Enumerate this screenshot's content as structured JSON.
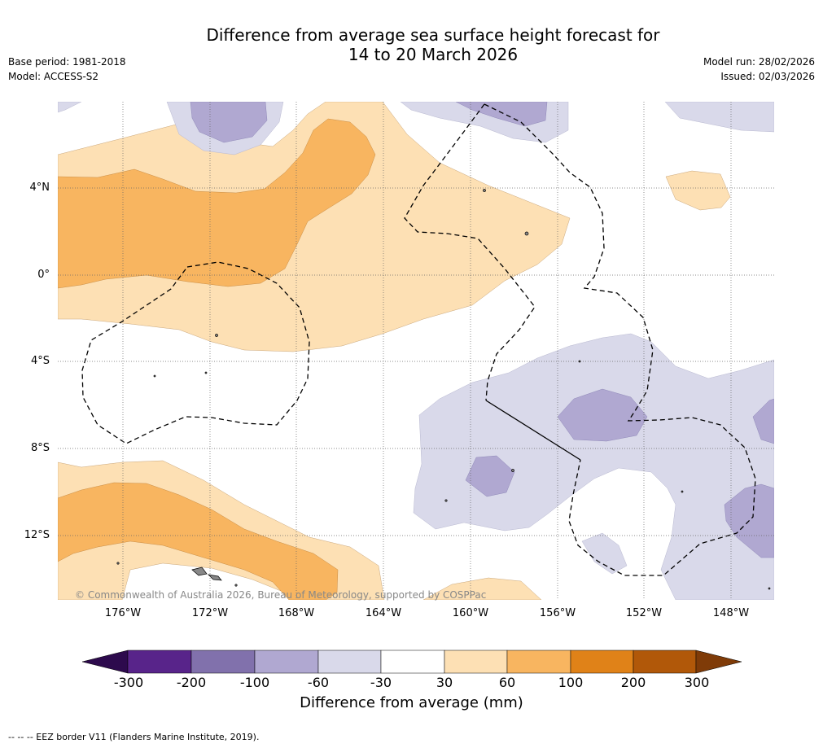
{
  "title_line1": "Difference from average sea surface height forecast for",
  "title_line2": "14 to 20 March 2026",
  "base_period": "Base period: 1981-2018",
  "model": "Model: ACCESS-S2",
  "model_run": "Model run: 28/02/2026",
  "issued": "Issued: 02/03/2026",
  "copyright": "© Commonwealth of Australia 2026, Bureau of Meteorology, supported by COSPPac",
  "footer": "--  --  -- EEZ border V11 (Flanders Marine Institute, 2019).",
  "lat_labels": [
    "4°N",
    "0°",
    "4°S",
    "8°S",
    "12°S"
  ],
  "lon_labels": [
    "176°W",
    "172°W",
    "168°W",
    "164°W",
    "160°W",
    "156°W",
    "152°W",
    "148°W"
  ],
  "colorbar": {
    "label": "Difference from average (mm)",
    "ticks": [
      "-300",
      "-200",
      "-100",
      "-60",
      "-30",
      "30",
      "60",
      "100",
      "200",
      "300"
    ],
    "colors": [
      "#2d0a4d",
      "#58248a",
      "#8171ac",
      "#b0a8d1",
      "#d9d9ea",
      "#ffffff",
      "#fde0b4",
      "#f8b560",
      "#e08218",
      "#b15809",
      "#7f3b08"
    ]
  }
}
